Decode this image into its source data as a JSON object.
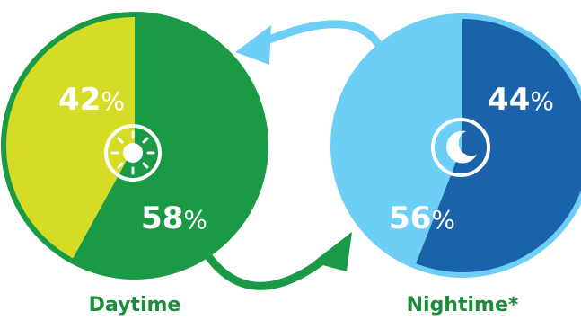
{
  "chart_data": [
    {
      "type": "pie",
      "title": "Daytime",
      "slices": [
        {
          "value": 42,
          "label": "42",
          "unit": "%"
        },
        {
          "value": 58,
          "label": "58",
          "unit": "%"
        }
      ],
      "icon": "sun-icon",
      "colors": [
        "#d6dc26",
        "#1b9a46"
      ],
      "border_color": "#1b9a46"
    },
    {
      "type": "pie",
      "title": "Nightime*",
      "slices": [
        {
          "value": 44,
          "label": "44",
          "unit": "%"
        },
        {
          "value": 56,
          "label": "56",
          "unit": "%"
        }
      ],
      "icon": "moon-icon",
      "colors": [
        "#6dcff6",
        "#1a63aa"
      ],
      "border_color": "#6dcff6"
    }
  ],
  "arrows": [
    {
      "name": "night-to-day-arrow",
      "color": "#6dcff6"
    },
    {
      "name": "day-to-night-arrow",
      "color": "#1a9a46"
    }
  ]
}
